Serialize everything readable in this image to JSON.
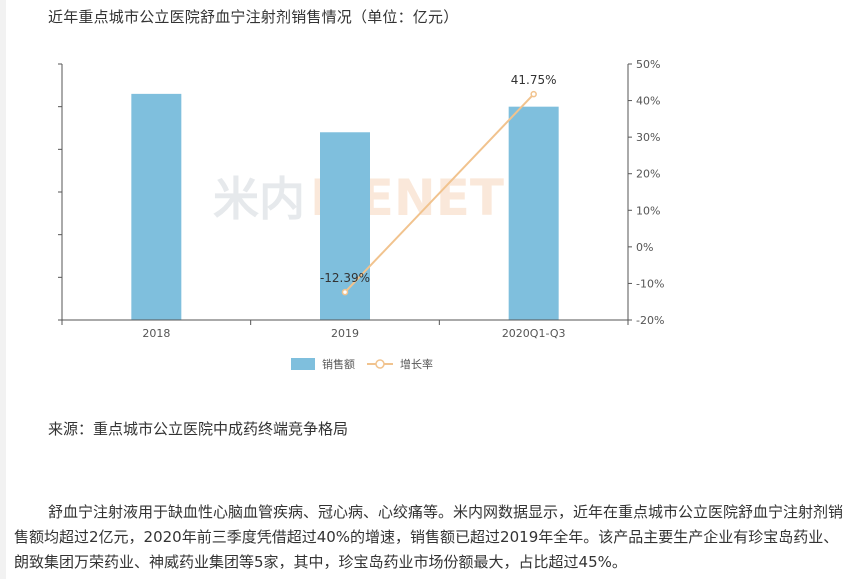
{
  "title": "近年重点城市公立医院舒血宁注射剂销售情况（单位：亿元）",
  "source": "来源：重点城市公立医院中成药终端竞争格局",
  "paragraph": "舒血宁注射液用于缺血性心脑血管疾病、冠心病、心绞痛等。米内网数据显示，近年在重点城市公立医院舒血宁注射剂销售额均超过2亿元，2020年前三季度凭借超过40%的增速，销售额已超过2019年全年。该产品主要生产企业有珍宝岛药业、朗致集团万荣药业、神威药业集团等5家，其中，珍宝岛药业市场份额最大，占比超过45%。",
  "colors": {
    "bar": "#7fbfdd",
    "line": "#f1c38e",
    "axis": "#555555",
    "text": "#333333"
  },
  "chart_data": {
    "type": "bar",
    "categories": [
      "2018",
      "2019",
      "2020Q1-Q3"
    ],
    "series": [
      {
        "name": "销售额",
        "type": "bar",
        "axis": "left",
        "values": [
          2.65,
          2.2,
          2.5
        ]
      },
      {
        "name": "增长率",
        "type": "line",
        "axis": "right",
        "values": [
          null,
          -12.39,
          41.75
        ],
        "labels": [
          "",
          "-12.39%",
          "41.75%"
        ]
      }
    ],
    "y_left": {
      "ylim": [
        0,
        3.0
      ],
      "tick_labels_visible": false,
      "tick_count": 6
    },
    "y_right": {
      "ylim": [
        -20,
        50
      ],
      "ticks": [
        "50%",
        "40%",
        "30%",
        "20%",
        "10%",
        "0%",
        "-10%",
        "-20%"
      ]
    },
    "legend": {
      "position": "bottom",
      "entries": [
        "销售额",
        "增长率"
      ]
    },
    "watermark": "米内网 MENET",
    "grid": false
  }
}
